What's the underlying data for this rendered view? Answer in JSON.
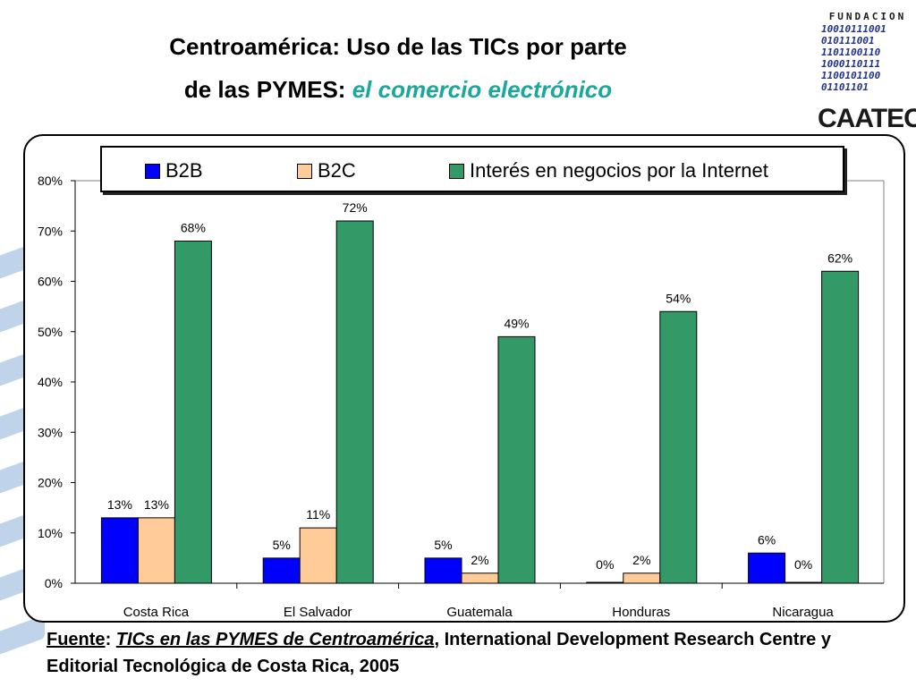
{
  "title": {
    "line1": "Centroamérica: Uso de las TICs por parte",
    "line2": "de las PYMES:",
    "accent": "el comercio electrónico"
  },
  "logo": {
    "top": "FUNDACION",
    "binary": "10010111001\n010111001\n1101100110\n1000110111\n1100101100\n01101101",
    "bottom": "CAATEC"
  },
  "source": {
    "label": "Fuente",
    "colon": ":",
    "publication": "TICs en las PYMES de Centroamérica",
    "rest": ", International Development Research Centre y Editorial Tecnológica de Costa Rica, 2005"
  },
  "chart_data": {
    "type": "bar",
    "categories": [
      "Costa Rica",
      "El Salvador",
      "Guatemala",
      "Honduras",
      "Nicaragua"
    ],
    "series": [
      {
        "name": "B2B",
        "color": "#0000ff",
        "values": [
          13,
          5,
          5,
          0,
          6
        ],
        "labels": [
          "13%",
          "5%",
          "5%",
          "0%",
          "6%"
        ]
      },
      {
        "name": "B2C",
        "color": "#ffcc99",
        "values": [
          13,
          11,
          2,
          2,
          0
        ],
        "labels": [
          "13%",
          "11%",
          "2%",
          "2%",
          "0%"
        ]
      },
      {
        "name": "Interés en negocios por la Internet",
        "color": "#339966",
        "values": [
          68,
          72,
          49,
          54,
          62
        ],
        "labels": [
          "68%",
          "72%",
          "49%",
          "54%",
          "62%"
        ]
      }
    ],
    "ylim": [
      0,
      80
    ],
    "yticks": [
      "0%",
      "10%",
      "20%",
      "30%",
      "40%",
      "50%",
      "60%",
      "70%",
      "80%"
    ],
    "xlabel": "",
    "ylabel": "",
    "grid": false,
    "legend": "top"
  }
}
